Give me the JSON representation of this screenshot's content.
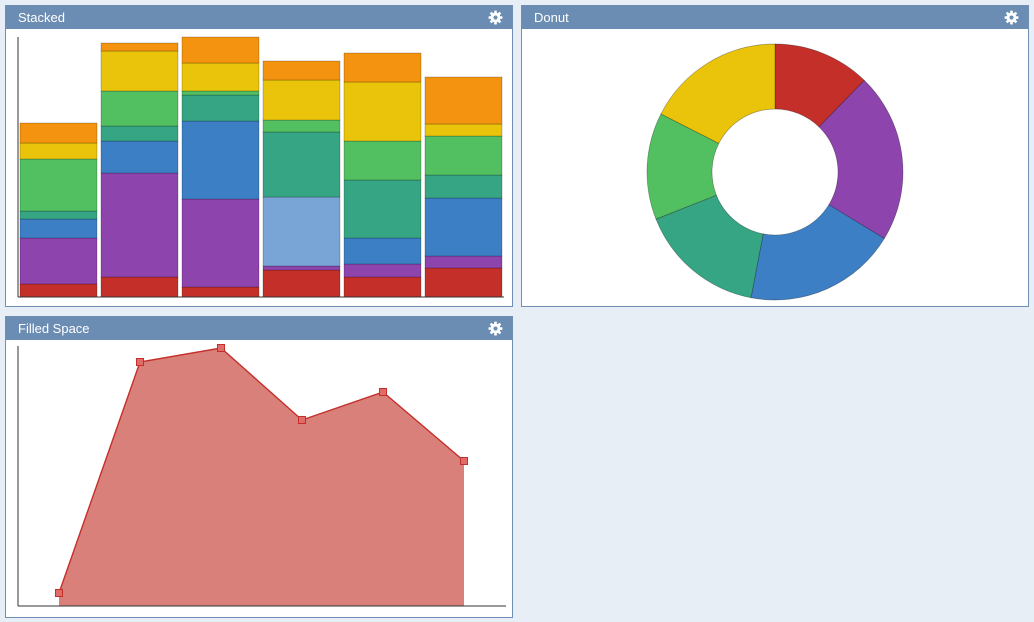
{
  "colors": {
    "panel_header": "#6c8db3",
    "page_background": "#e8eef6",
    "palette": [
      "#c42f2a",
      "#8e44ad",
      "#3c7fc4",
      "#78a4d6",
      "#36a583",
      "#52bf60",
      "#eac40b",
      "#f3930f"
    ]
  },
  "panels": {
    "stacked": {
      "title": "Stacked",
      "icon": "gear-icon"
    },
    "donut": {
      "title": "Donut",
      "icon": "gear-icon"
    },
    "filled": {
      "title": "Filled Space",
      "icon": "gear-icon"
    }
  },
  "chart_data": [
    {
      "type": "bar",
      "stacked": true,
      "ylim": [
        0,
        260
      ],
      "grid": false,
      "bars": [
        [
          {
            "color": "#c42f2a",
            "value": 13
          },
          {
            "color": "#8e44ad",
            "value": 46
          },
          {
            "color": "#3c7fc4",
            "value": 19
          },
          {
            "color": "#36a583",
            "value": 8
          },
          {
            "color": "#52bf60",
            "value": 52
          },
          {
            "color": "#eac40b",
            "value": 16
          },
          {
            "color": "#f3930f",
            "value": 20
          }
        ],
        [
          {
            "color": "#c42f2a",
            "value": 20
          },
          {
            "color": "#8e44ad",
            "value": 104
          },
          {
            "color": "#3c7fc4",
            "value": 32
          },
          {
            "color": "#36a583",
            "value": 15
          },
          {
            "color": "#52bf60",
            "value": 35
          },
          {
            "color": "#eac40b",
            "value": 40
          },
          {
            "color": "#f3930f",
            "value": 8
          }
        ],
        [
          {
            "color": "#c42f2a",
            "value": 10
          },
          {
            "color": "#8e44ad",
            "value": 88
          },
          {
            "color": "#3c7fc4",
            "value": 78
          },
          {
            "color": "#36a583",
            "value": 26
          },
          {
            "color": "#52bf60",
            "value": 4
          },
          {
            "color": "#eac40b",
            "value": 28
          },
          {
            "color": "#f3930f",
            "value": 26
          }
        ],
        [
          {
            "color": "#c42f2a",
            "value": 27
          },
          {
            "color": "#8e44ad",
            "value": 4
          },
          {
            "color": "#78a4d6",
            "value": 69
          },
          {
            "color": "#36a583",
            "value": 65
          },
          {
            "color": "#52bf60",
            "value": 12
          },
          {
            "color": "#eac40b",
            "value": 40
          },
          {
            "color": "#f3930f",
            "value": 19
          }
        ],
        [
          {
            "color": "#c42f2a",
            "value": 20
          },
          {
            "color": "#8e44ad",
            "value": 13
          },
          {
            "color": "#3c7fc4",
            "value": 26
          },
          {
            "color": "#36a583",
            "value": 58
          },
          {
            "color": "#52bf60",
            "value": 39
          },
          {
            "color": "#eac40b",
            "value": 59
          },
          {
            "color": "#f3930f",
            "value": 29
          }
        ],
        [
          {
            "color": "#c42f2a",
            "value": 29
          },
          {
            "color": "#8e44ad",
            "value": 12
          },
          {
            "color": "#3c7fc4",
            "value": 58
          },
          {
            "color": "#36a583",
            "value": 23
          },
          {
            "color": "#52bf60",
            "value": 39
          },
          {
            "color": "#eac40b",
            "value": 12
          },
          {
            "color": "#f3930f",
            "value": 47
          }
        ]
      ]
    },
    {
      "type": "pie",
      "donut": true,
      "slices": [
        {
          "color": "#c42f2a",
          "value": 12.3
        },
        {
          "color": "#8e44ad",
          "value": 21.4
        },
        {
          "color": "#3c7fc4",
          "value": 19.3
        },
        {
          "color": "#36a583",
          "value": 16.0
        },
        {
          "color": "#52bf60",
          "value": 13.5
        },
        {
          "color": "#eac40b",
          "value": 17.5
        }
      ]
    },
    {
      "type": "area",
      "color": "#c42f2a",
      "fill": "#d9807a",
      "ylim": [
        0,
        260
      ],
      "points": [
        {
          "x": 1,
          "y": 13
        },
        {
          "x": 2,
          "y": 244
        },
        {
          "x": 3,
          "y": 258
        },
        {
          "x": 4,
          "y": 186
        },
        {
          "x": 5,
          "y": 214
        },
        {
          "x": 6,
          "y": 145
        }
      ]
    }
  ]
}
